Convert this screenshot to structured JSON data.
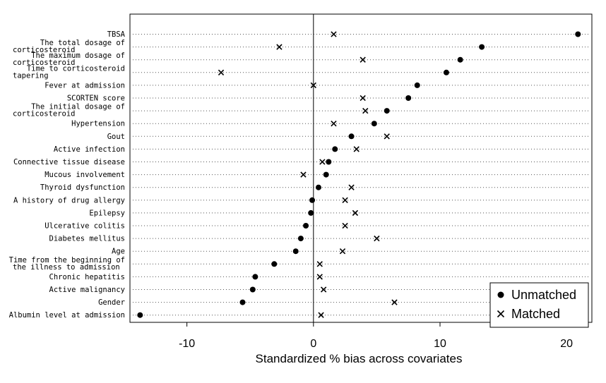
{
  "chart_data": {
    "type": "scatter",
    "xlabel": "Standardized % bias across covariates",
    "xlim": [
      -14.5,
      22
    ],
    "xticks": [
      -10,
      0,
      10,
      20
    ],
    "reference_line_x": 0,
    "legend_position": "bottom-right",
    "series": [
      {
        "name": "Unmatched",
        "marker": "filled-circle"
      },
      {
        "name": "Matched",
        "marker": "x"
      }
    ],
    "rows": [
      {
        "label": [
          "TBSA"
        ],
        "unmatched": 20.9,
        "matched": 1.6
      },
      {
        "label": [
          "The total dosage of",
          "corticosteroid"
        ],
        "unmatched": 13.3,
        "matched": -2.7
      },
      {
        "label": [
          "The maximum dosage of",
          "corticosteroid"
        ],
        "unmatched": 11.6,
        "matched": 3.9
      },
      {
        "label": [
          "Time to corticosteroid",
          "tapering"
        ],
        "unmatched": 10.5,
        "matched": -7.3
      },
      {
        "label": [
          "Fever at admission"
        ],
        "unmatched": 8.2,
        "matched": 0.0
      },
      {
        "label": [
          "SCORTEN score"
        ],
        "unmatched": 7.5,
        "matched": 3.9
      },
      {
        "label": [
          "The initial dosage of",
          "corticosteroid"
        ],
        "unmatched": 5.8,
        "matched": 4.1
      },
      {
        "label": [
          "Hypertension"
        ],
        "unmatched": 4.8,
        "matched": 1.6
      },
      {
        "label": [
          "Gout"
        ],
        "unmatched": 3.0,
        "matched": 5.8
      },
      {
        "label": [
          "Active infection"
        ],
        "unmatched": 1.7,
        "matched": 3.4
      },
      {
        "label": [
          "Connective tissue disease"
        ],
        "unmatched": 1.2,
        "matched": 0.7
      },
      {
        "label": [
          "Mucous involvement"
        ],
        "unmatched": 1.0,
        "matched": -0.8
      },
      {
        "label": [
          "Thyroid dysfunction"
        ],
        "unmatched": 0.4,
        "matched": 3.0
      },
      {
        "label": [
          "A history of drug allergy"
        ],
        "unmatched": -0.1,
        "matched": 2.5
      },
      {
        "label": [
          "Epilepsy"
        ],
        "unmatched": -0.2,
        "matched": 3.3
      },
      {
        "label": [
          "Ulcerative colitis"
        ],
        "unmatched": -0.6,
        "matched": 2.5
      },
      {
        "label": [
          "Diabetes mellitus"
        ],
        "unmatched": -1.0,
        "matched": 5.0
      },
      {
        "label": [
          "Age"
        ],
        "unmatched": -1.4,
        "matched": 2.3
      },
      {
        "label": [
          "Time from the beginning of",
          "the illness to admission"
        ],
        "unmatched": -3.1,
        "matched": 0.5
      },
      {
        "label": [
          "Chronic hepatitis"
        ],
        "unmatched": -4.6,
        "matched": 0.5
      },
      {
        "label": [
          "Active malignancy"
        ],
        "unmatched": -4.8,
        "matched": 0.8
      },
      {
        "label": [
          "Gender"
        ],
        "unmatched": -5.6,
        "matched": 6.4
      },
      {
        "label": [
          "Albumin level at admission"
        ],
        "unmatched": -13.7,
        "matched": 0.6
      }
    ]
  }
}
